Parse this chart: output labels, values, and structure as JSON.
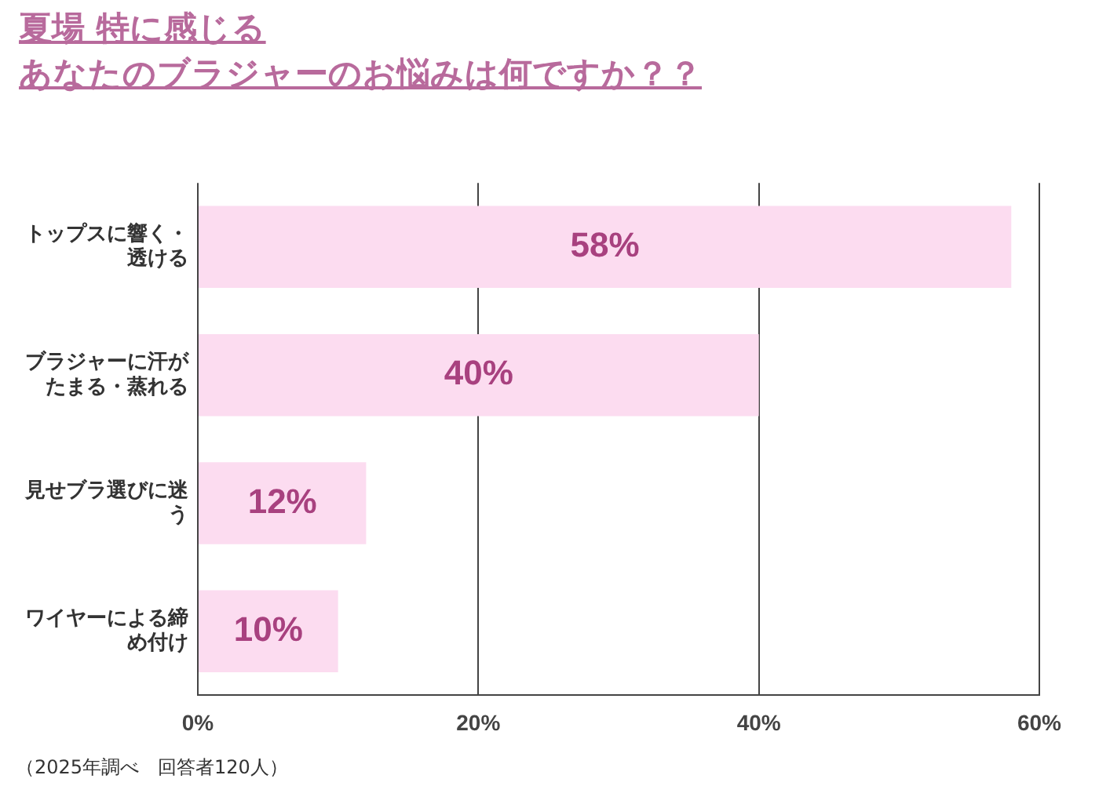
{
  "chart_data": {
    "type": "bar",
    "orientation": "horizontal",
    "title": "夏場 特に感じる",
    "subtitle": "あなたのブラジャーのお悩みは何ですか？？",
    "categories": [
      "トップスに響く・透ける",
      "ブラジャーに汗がたまる・蒸れる",
      "見せブラ選びに迷う",
      "ワイヤーによる締め付け"
    ],
    "values": [
      58,
      40,
      12,
      10
    ],
    "color": "#fcdcf0",
    "value_labels": [
      "58%",
      "40%",
      "12%",
      "10%"
    ],
    "xlim": [
      0,
      60
    ],
    "xticks": [
      {
        "value": 0,
        "label": "0%"
      },
      {
        "value": 20,
        "label": "20%"
      },
      {
        "value": 40,
        "label": "40%"
      },
      {
        "value": 60,
        "label": "60%"
      }
    ],
    "grid": "x",
    "legend": false,
    "annotations": [
      "（2025年調べ　回答者120人）"
    ]
  }
}
